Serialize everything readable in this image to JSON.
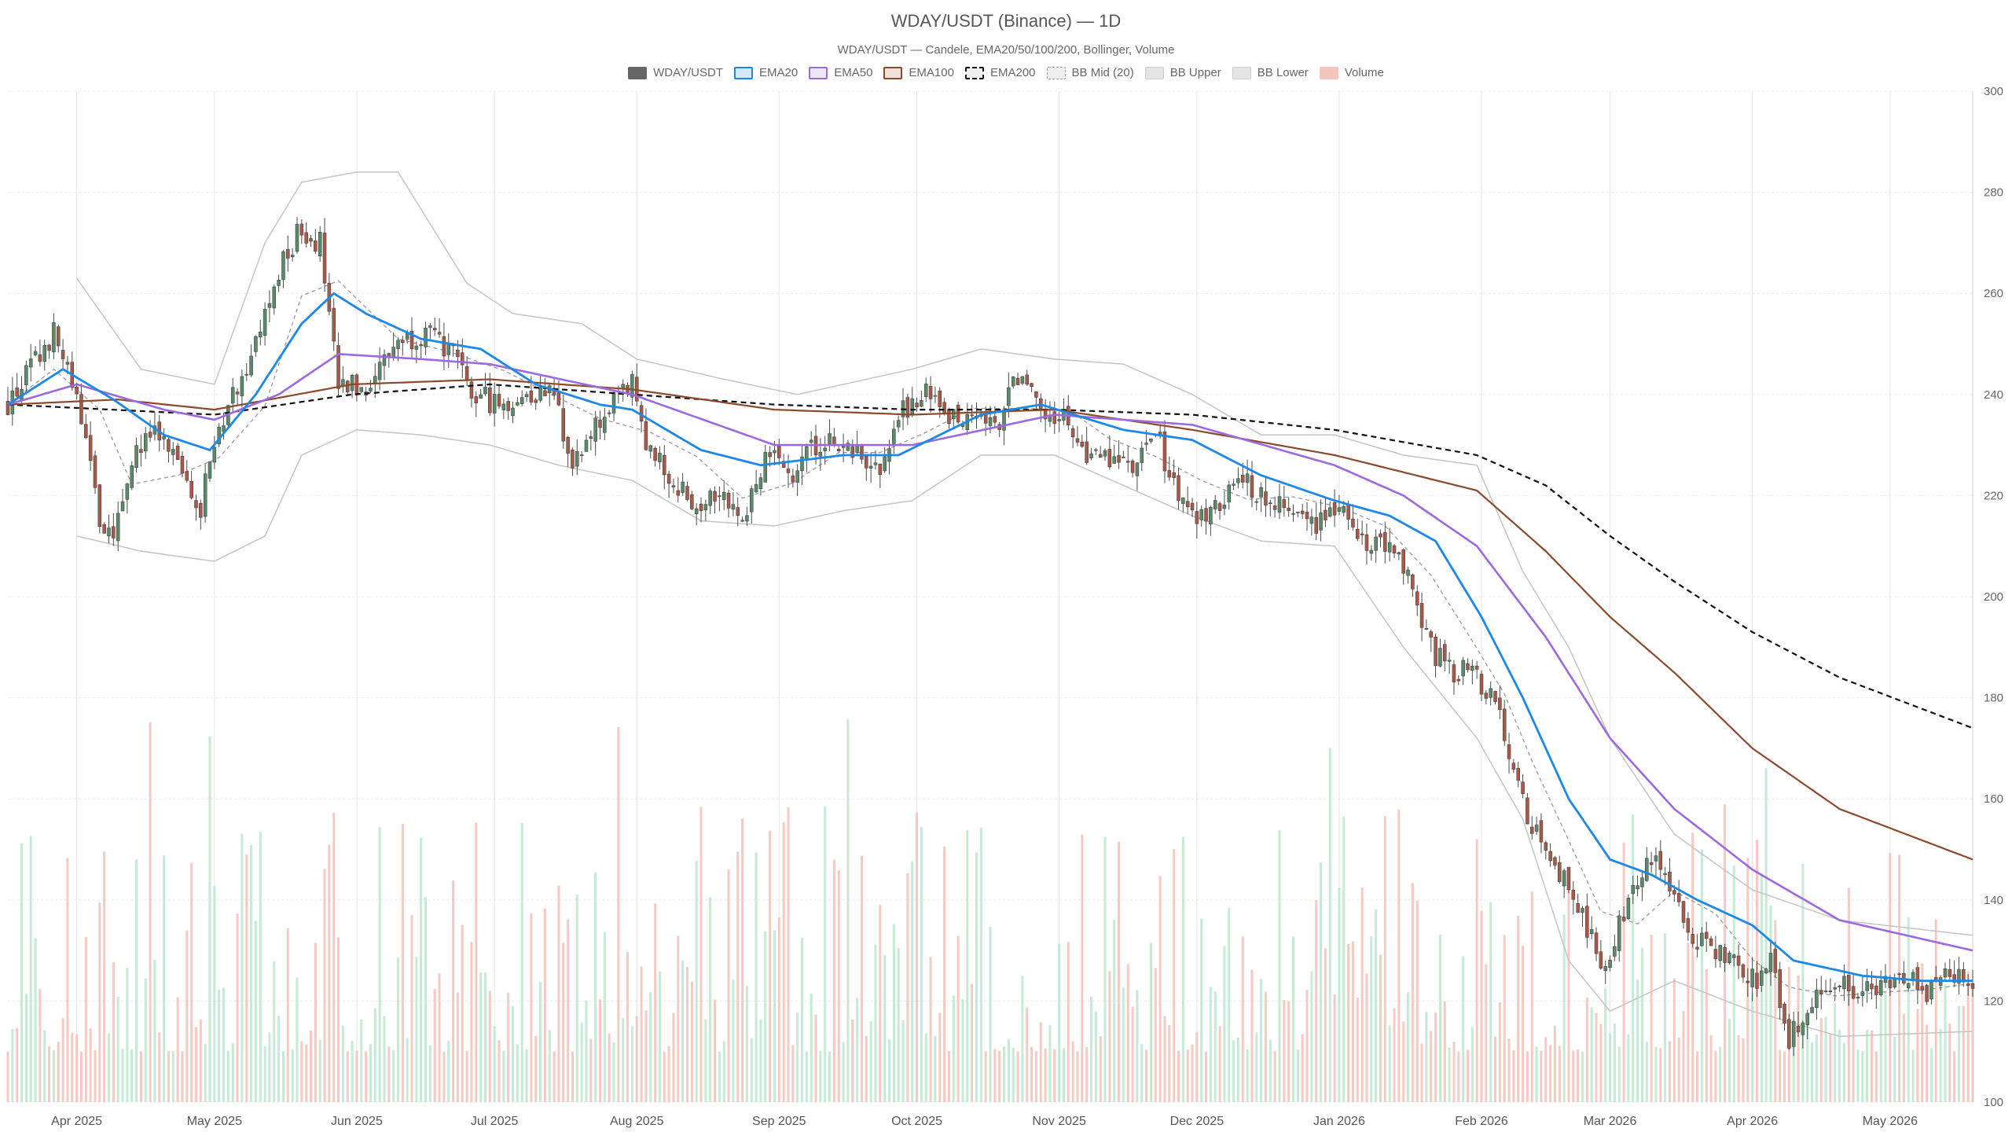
{
  "chart_data": {
    "type": "candlestick",
    "title": "WDAY/USDT (Binance) — 1D",
    "subtitle": "WDAY/USDT — Candele, EMA20/50/100/200, Bollinger, Volume",
    "legend_placement": "top-center",
    "grid": true,
    "ylim": [
      100,
      300
    ],
    "y_ticks": [
      100,
      120,
      140,
      160,
      180,
      200,
      220,
      240,
      260,
      280,
      300
    ],
    "x_range": [
      "2025-03-17",
      "2026-05-19"
    ],
    "x_ticks": [
      {
        "date": "2025-04-01",
        "label": "Apr 2025"
      },
      {
        "date": "2025-05-01",
        "label": "May 2025"
      },
      {
        "date": "2025-06-01",
        "label": "Jun 2025"
      },
      {
        "date": "2025-07-01",
        "label": "Jul 2025"
      },
      {
        "date": "2025-08-01",
        "label": "Aug 2025"
      },
      {
        "date": "2025-09-01",
        "label": "Sep 2025"
      },
      {
        "date": "2025-10-01",
        "label": "Oct 2025"
      },
      {
        "date": "2025-11-01",
        "label": "Nov 2025"
      },
      {
        "date": "2025-12-01",
        "label": "Dec 2025"
      },
      {
        "date": "2026-01-01",
        "label": "Jan 2026"
      },
      {
        "date": "2026-02-01",
        "label": "Feb 2026"
      },
      {
        "date": "2026-03-01",
        "label": "Mar 2026"
      },
      {
        "date": "2026-04-01",
        "label": "Apr 2026"
      },
      {
        "date": "2026-05-01",
        "label": "May 2026"
      }
    ],
    "series": [
      {
        "name": "WDAY/USDT",
        "kind": "candlestick",
        "color_up": "#5b8a6a",
        "color_down": "#a85a4a"
      },
      {
        "name": "EMA20",
        "kind": "line",
        "color": "#1e88e5"
      },
      {
        "name": "EMA50",
        "kind": "line",
        "color": "#9c6ade"
      },
      {
        "name": "EMA100",
        "kind": "line",
        "color": "#8b4a2b"
      },
      {
        "name": "EMA200",
        "kind": "line",
        "color": "#111111",
        "dash": true
      },
      {
        "name": "BB Mid (20)",
        "kind": "line",
        "color": "#999999",
        "dash": true
      },
      {
        "name": "BB Upper",
        "kind": "line",
        "color": "#bbbbbb"
      },
      {
        "name": "BB Lower",
        "kind": "line",
        "color": "#bbbbbb"
      },
      {
        "name": "Volume",
        "kind": "bar",
        "color_up": "#bfe8d0",
        "color_down": "#f5c4bc"
      }
    ],
    "price_anchors": [
      [
        "2025-03-17",
        238
      ],
      [
        "2025-03-22",
        245
      ],
      [
        "2025-03-27",
        252
      ],
      [
        "2025-04-02",
        236
      ],
      [
        "2025-04-06",
        215
      ],
      [
        "2025-04-09",
        210
      ],
      [
        "2025-04-13",
        228
      ],
      [
        "2025-04-18",
        232
      ],
      [
        "2025-04-23",
        226
      ],
      [
        "2025-04-28",
        218
      ],
      [
        "2025-05-02",
        234
      ],
      [
        "2025-05-07",
        244
      ],
      [
        "2025-05-12",
        255
      ],
      [
        "2025-05-16",
        266
      ],
      [
        "2025-05-20",
        273
      ],
      [
        "2025-05-24",
        270
      ],
      [
        "2025-05-28",
        241
      ],
      [
        "2025-06-03",
        242
      ],
      [
        "2025-06-10",
        251
      ],
      [
        "2025-06-16",
        252
      ],
      [
        "2025-06-21",
        249
      ],
      [
        "2025-06-26",
        240
      ],
      [
        "2025-07-03",
        238
      ],
      [
        "2025-07-09",
        240
      ],
      [
        "2025-07-14",
        241
      ],
      [
        "2025-07-18",
        225
      ],
      [
        "2025-07-24",
        235
      ],
      [
        "2025-07-31",
        242
      ],
      [
        "2025-08-04",
        228
      ],
      [
        "2025-08-09",
        223
      ],
      [
        "2025-08-14",
        218
      ],
      [
        "2025-08-19",
        222
      ],
      [
        "2025-08-24",
        215
      ],
      [
        "2025-08-29",
        228
      ],
      [
        "2025-09-04",
        225
      ],
      [
        "2025-09-10",
        231
      ],
      [
        "2025-09-14",
        230
      ],
      [
        "2025-09-19",
        228
      ],
      [
        "2025-09-23",
        225
      ],
      [
        "2025-09-28",
        237
      ],
      [
        "2025-10-03",
        240
      ],
      [
        "2025-10-08",
        235
      ],
      [
        "2025-10-13",
        237
      ],
      [
        "2025-10-18",
        233
      ],
      [
        "2025-10-23",
        244
      ],
      [
        "2025-10-28",
        236
      ],
      [
        "2025-11-03",
        235
      ],
      [
        "2025-11-07",
        226
      ],
      [
        "2025-11-12",
        228
      ],
      [
        "2025-11-17",
        225
      ],
      [
        "2025-11-22",
        232
      ],
      [
        "2025-11-27",
        220
      ],
      [
        "2025-12-02",
        215
      ],
      [
        "2025-12-07",
        220
      ],
      [
        "2025-12-12",
        222
      ],
      [
        "2025-12-17",
        220
      ],
      [
        "2025-12-22",
        217
      ],
      [
        "2025-12-27",
        215
      ],
      [
        "2026-01-01",
        219
      ],
      [
        "2026-01-06",
        212
      ],
      [
        "2026-01-11",
        210
      ],
      [
        "2026-01-16",
        205
      ],
      [
        "2026-01-21",
        190
      ],
      [
        "2026-01-26",
        184
      ],
      [
        "2026-01-30",
        186
      ],
      [
        "2026-02-03",
        180
      ],
      [
        "2026-02-06",
        173
      ],
      [
        "2026-02-09",
        162
      ],
      [
        "2026-02-12",
        155
      ],
      [
        "2026-02-16",
        147
      ],
      [
        "2026-02-20",
        143
      ],
      [
        "2026-02-24",
        135
      ],
      [
        "2026-02-27",
        126
      ],
      [
        "2026-03-03",
        135
      ],
      [
        "2026-03-07",
        145
      ],
      [
        "2026-03-11",
        147
      ],
      [
        "2026-03-15",
        140
      ],
      [
        "2026-03-19",
        132
      ],
      [
        "2026-03-24",
        130
      ],
      [
        "2026-03-28",
        127
      ],
      [
        "2026-04-01",
        124
      ],
      [
        "2026-04-05",
        127
      ],
      [
        "2026-04-09",
        113
      ],
      [
        "2026-04-14",
        120
      ],
      [
        "2026-04-19",
        124
      ],
      [
        "2026-04-24",
        121
      ],
      [
        "2026-04-29",
        122
      ],
      [
        "2026-05-04",
        125
      ],
      [
        "2026-05-09",
        121
      ],
      [
        "2026-05-14",
        126
      ],
      [
        "2026-05-19",
        122
      ]
    ],
    "ema20_anchors": [
      [
        "2025-03-17",
        238
      ],
      [
        "2025-03-29",
        245
      ],
      [
        "2025-04-09",
        239
      ],
      [
        "2025-04-20",
        232
      ],
      [
        "2025-04-30",
        229
      ],
      [
        "2025-05-10",
        240
      ],
      [
        "2025-05-20",
        254
      ],
      [
        "2025-05-27",
        260
      ],
      [
        "2025-06-03",
        256
      ],
      [
        "2025-06-15",
        251
      ],
      [
        "2025-06-28",
        249
      ],
      [
        "2025-07-10",
        242
      ],
      [
        "2025-07-24",
        238
      ],
      [
        "2025-07-31",
        237
      ],
      [
        "2025-08-15",
        229
      ],
      [
        "2025-08-28",
        226
      ],
      [
        "2025-09-15",
        228
      ],
      [
        "2025-09-27",
        228
      ],
      [
        "2025-10-15",
        236
      ],
      [
        "2025-10-28",
        238
      ],
      [
        "2025-11-15",
        233
      ],
      [
        "2025-11-30",
        231
      ],
      [
        "2025-12-15",
        224
      ],
      [
        "2025-12-31",
        219
      ],
      [
        "2026-01-12",
        216
      ],
      [
        "2026-01-22",
        211
      ],
      [
        "2026-02-01",
        196
      ],
      [
        "2026-02-10",
        180
      ],
      [
        "2026-02-20",
        160
      ],
      [
        "2026-03-01",
        148
      ],
      [
        "2026-03-10",
        145
      ],
      [
        "2026-03-20",
        140
      ],
      [
        "2026-04-01",
        135
      ],
      [
        "2026-04-10",
        128
      ],
      [
        "2026-04-25",
        125
      ],
      [
        "2026-05-08",
        124
      ],
      [
        "2026-05-19",
        124
      ]
    ],
    "ema50_anchors": [
      [
        "2025-03-17",
        238
      ],
      [
        "2025-04-01",
        242
      ],
      [
        "2025-04-20",
        237
      ],
      [
        "2025-05-01",
        235
      ],
      [
        "2025-05-15",
        240
      ],
      [
        "2025-05-28",
        248
      ],
      [
        "2025-06-15",
        247
      ],
      [
        "2025-06-30",
        246
      ],
      [
        "2025-07-31",
        240
      ],
      [
        "2025-08-31",
        230
      ],
      [
        "2025-09-30",
        230
      ],
      [
        "2025-10-31",
        236
      ],
      [
        "2025-11-30",
        234
      ],
      [
        "2025-12-31",
        226
      ],
      [
        "2026-01-15",
        220
      ],
      [
        "2026-01-31",
        210
      ],
      [
        "2026-02-15",
        192
      ],
      [
        "2026-03-01",
        172
      ],
      [
        "2026-03-15",
        158
      ],
      [
        "2026-04-01",
        146
      ],
      [
        "2026-04-20",
        136
      ],
      [
        "2026-05-19",
        130
      ]
    ],
    "ema100_anchors": [
      [
        "2025-03-17",
        238
      ],
      [
        "2025-04-10",
        239
      ],
      [
        "2025-05-01",
        237
      ],
      [
        "2025-05-31",
        242
      ],
      [
        "2025-06-30",
        243
      ],
      [
        "2025-07-31",
        241
      ],
      [
        "2025-08-31",
        237
      ],
      [
        "2025-09-30",
        236
      ],
      [
        "2025-10-31",
        237
      ],
      [
        "2025-11-30",
        233
      ],
      [
        "2025-12-31",
        228
      ],
      [
        "2026-01-31",
        221
      ],
      [
        "2026-02-15",
        209
      ],
      [
        "2026-03-01",
        196
      ],
      [
        "2026-03-15",
        185
      ],
      [
        "2026-04-01",
        170
      ],
      [
        "2026-04-20",
        158
      ],
      [
        "2026-05-19",
        148
      ]
    ],
    "ema200_anchors": [
      [
        "2025-03-17",
        238
      ],
      [
        "2025-05-01",
        236
      ],
      [
        "2025-05-31",
        240
      ],
      [
        "2025-06-30",
        242
      ],
      [
        "2025-07-31",
        240
      ],
      [
        "2025-08-31",
        238
      ],
      [
        "2025-09-30",
        237
      ],
      [
        "2025-10-31",
        237
      ],
      [
        "2025-11-30",
        236
      ],
      [
        "2025-12-31",
        233
      ],
      [
        "2026-01-31",
        228
      ],
      [
        "2026-02-15",
        222
      ],
      [
        "2026-03-01",
        212
      ],
      [
        "2026-03-15",
        203
      ],
      [
        "2026-04-01",
        193
      ],
      [
        "2026-04-20",
        184
      ],
      [
        "2026-05-19",
        174
      ]
    ],
    "bb_upper_anchors": [
      [
        "2025-04-01",
        263
      ],
      [
        "2025-04-15",
        245
      ],
      [
        "2025-05-01",
        242
      ],
      [
        "2025-05-12",
        270
      ],
      [
        "2025-05-20",
        282
      ],
      [
        "2025-06-01",
        284
      ],
      [
        "2025-06-10",
        284
      ],
      [
        "2025-06-25",
        262
      ],
      [
        "2025-07-05",
        256
      ],
      [
        "2025-07-20",
        254
      ],
      [
        "2025-08-01",
        247
      ],
      [
        "2025-08-20",
        243
      ],
      [
        "2025-09-05",
        240
      ],
      [
        "2025-09-30",
        245
      ],
      [
        "2025-10-15",
        249
      ],
      [
        "2025-10-31",
        247
      ],
      [
        "2025-11-15",
        246
      ],
      [
        "2025-11-30",
        240
      ],
      [
        "2025-12-15",
        232
      ],
      [
        "2025-12-31",
        232
      ],
      [
        "2026-01-15",
        228
      ],
      [
        "2026-01-31",
        226
      ],
      [
        "2026-02-10",
        205
      ],
      [
        "2026-02-20",
        190
      ],
      [
        "2026-03-01",
        172
      ],
      [
        "2026-03-15",
        153
      ],
      [
        "2026-04-01",
        142
      ],
      [
        "2026-04-20",
        136
      ],
      [
        "2026-05-19",
        133
      ]
    ],
    "bb_lower_anchors": [
      [
        "2025-04-01",
        212
      ],
      [
        "2025-04-15",
        209
      ],
      [
        "2025-05-01",
        207
      ],
      [
        "2025-05-12",
        212
      ],
      [
        "2025-05-20",
        228
      ],
      [
        "2025-06-01",
        233
      ],
      [
        "2025-06-15",
        232
      ],
      [
        "2025-06-30",
        230
      ],
      [
        "2025-07-15",
        226
      ],
      [
        "2025-07-31",
        223
      ],
      [
        "2025-08-15",
        215
      ],
      [
        "2025-08-31",
        214
      ],
      [
        "2025-09-15",
        217
      ],
      [
        "2025-09-30",
        219
      ],
      [
        "2025-10-15",
        228
      ],
      [
        "2025-10-31",
        228
      ],
      [
        "2025-11-15",
        222
      ],
      [
        "2025-11-30",
        216
      ],
      [
        "2025-12-15",
        211
      ],
      [
        "2025-12-31",
        210
      ],
      [
        "2026-01-15",
        190
      ],
      [
        "2026-01-31",
        172
      ],
      [
        "2026-02-10",
        156
      ],
      [
        "2026-02-20",
        128
      ],
      [
        "2026-03-01",
        118
      ],
      [
        "2026-03-15",
        124
      ],
      [
        "2026-04-01",
        118
      ],
      [
        "2026-04-20",
        113
      ],
      [
        "2026-05-19",
        114
      ]
    ]
  }
}
